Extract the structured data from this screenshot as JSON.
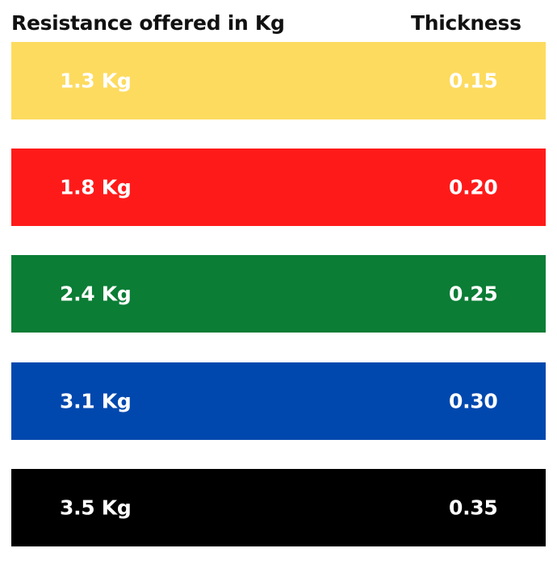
{
  "header": {
    "resistance_label": "Resistance offered in Kg",
    "thickness_label": "Thickness"
  },
  "bands": [
    {
      "resistance": "1.3 Kg",
      "thickness": "0.15",
      "color": "#FDDB5F"
    },
    {
      "resistance": "1.8 Kg",
      "thickness": "0.20",
      "color": "#FF1A1A"
    },
    {
      "resistance": "2.4 Kg",
      "thickness": "0.25",
      "color": "#0B7D35"
    },
    {
      "resistance": "3.1 Kg",
      "thickness": "0.30",
      "color": "#0048AE"
    },
    {
      "resistance": "3.5 Kg",
      "thickness": "0.35",
      "color": "#000000"
    }
  ]
}
